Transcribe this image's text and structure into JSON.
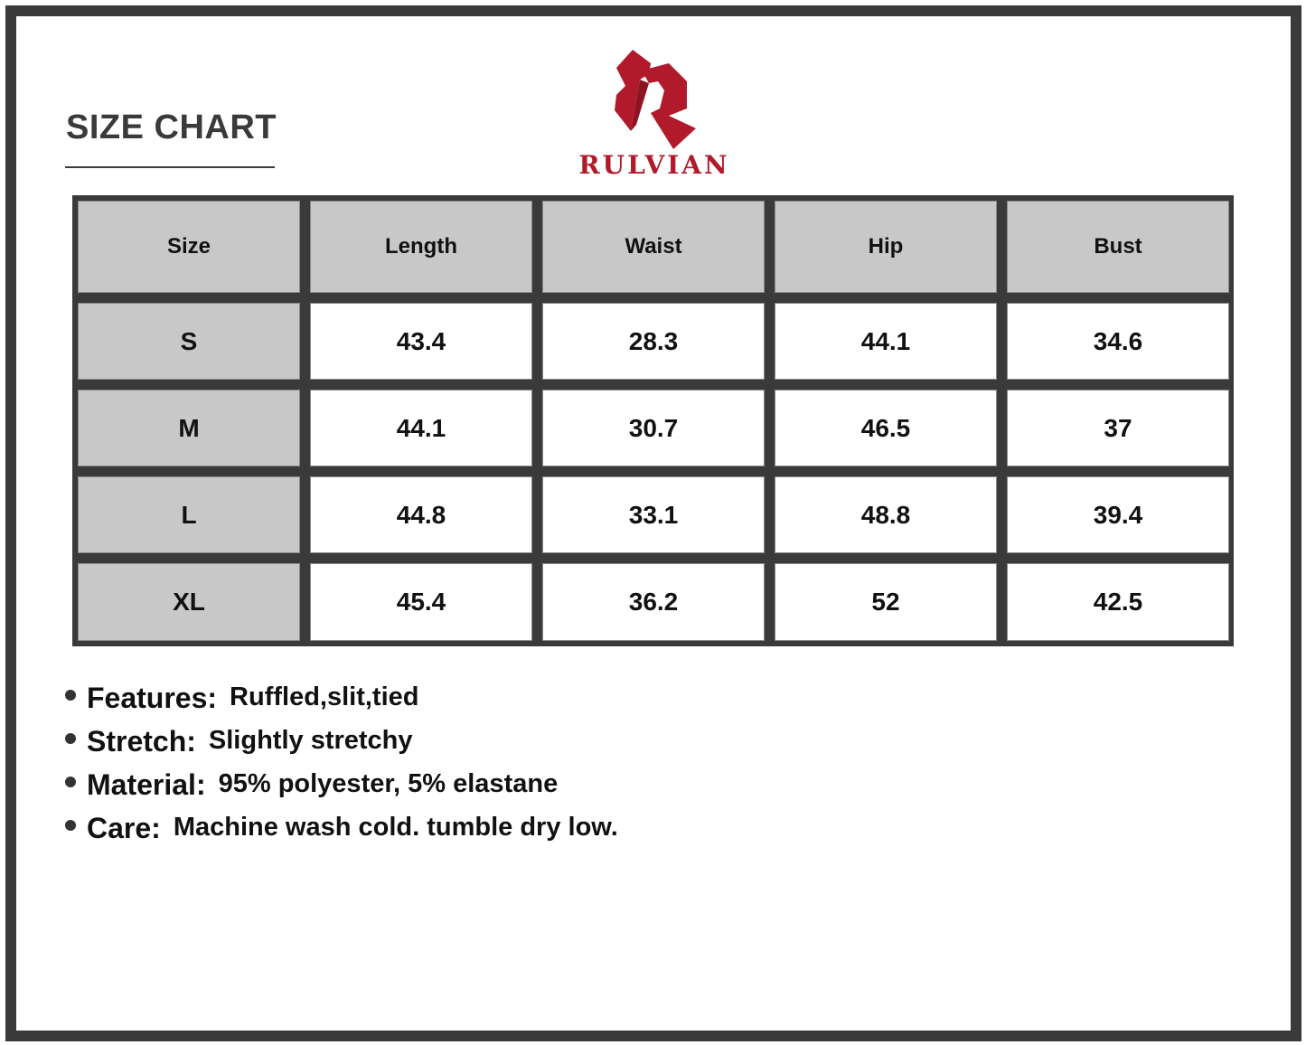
{
  "title": "SIZE CHART",
  "brand": {
    "name": "RULVIAN",
    "color": "#b01a2a"
  },
  "table": {
    "headers": [
      "Size",
      "Length",
      "Waist",
      "Hip",
      "Bust"
    ],
    "rows": [
      [
        "S",
        "43.4",
        "28.3",
        "44.1",
        "34.6"
      ],
      [
        "M",
        "44.1",
        "30.7",
        "46.5",
        "37"
      ],
      [
        "L",
        "44.8",
        "33.1",
        "48.8",
        "39.4"
      ],
      [
        "XL",
        "45.4",
        "36.2",
        "52",
        "42.5"
      ]
    ]
  },
  "features": [
    {
      "label": "Features:",
      "value": "Ruffled,slit,tied"
    },
    {
      "label": "Stretch:",
      "value": "Slightly stretchy"
    },
    {
      "label": "Material:",
      "value": "95% polyester, 5% elastane"
    },
    {
      "label": "Care:",
      "value": "Machine wash cold. tumble dry low."
    }
  ]
}
